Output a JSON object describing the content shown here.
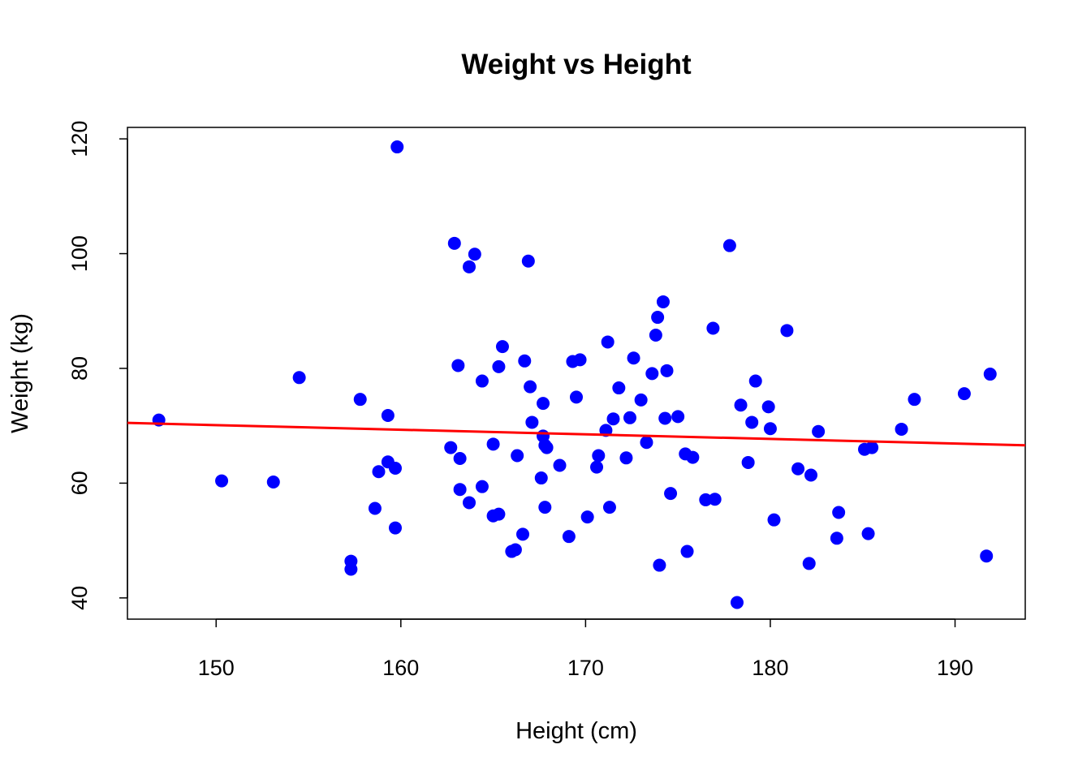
{
  "chart_data": {
    "type": "scatter",
    "title": "Weight vs Height",
    "xlabel": "Height (cm)",
    "ylabel": "Weight (kg)",
    "xlim": [
      145.2,
      193.8
    ],
    "ylim": [
      36.3,
      122.0
    ],
    "xticks": [
      150,
      160,
      170,
      180,
      190
    ],
    "yticks": [
      40,
      60,
      80,
      100,
      120
    ],
    "point_color": "#0000ff",
    "line_color": "#ff0000",
    "regression_line": {
      "x": [
        145.2,
        193.8
      ],
      "y": [
        70.5,
        66.6
      ]
    },
    "points": [
      {
        "x": 146.9,
        "y": 71.0
      },
      {
        "x": 150.3,
        "y": 60.4
      },
      {
        "x": 153.1,
        "y": 60.2
      },
      {
        "x": 154.5,
        "y": 78.4
      },
      {
        "x": 157.3,
        "y": 46.4
      },
      {
        "x": 157.3,
        "y": 45.0
      },
      {
        "x": 157.8,
        "y": 74.6
      },
      {
        "x": 158.6,
        "y": 55.6
      },
      {
        "x": 158.8,
        "y": 62.0
      },
      {
        "x": 159.3,
        "y": 71.8
      },
      {
        "x": 159.3,
        "y": 63.7
      },
      {
        "x": 159.7,
        "y": 62.6
      },
      {
        "x": 159.7,
        "y": 52.2
      },
      {
        "x": 159.8,
        "y": 118.6
      },
      {
        "x": 162.7,
        "y": 66.2
      },
      {
        "x": 162.9,
        "y": 101.8
      },
      {
        "x": 163.1,
        "y": 80.5
      },
      {
        "x": 163.2,
        "y": 64.3
      },
      {
        "x": 163.2,
        "y": 58.9
      },
      {
        "x": 163.7,
        "y": 97.7
      },
      {
        "x": 163.7,
        "y": 56.6
      },
      {
        "x": 164.0,
        "y": 99.9
      },
      {
        "x": 164.4,
        "y": 77.8
      },
      {
        "x": 164.4,
        "y": 59.4
      },
      {
        "x": 165.0,
        "y": 66.8
      },
      {
        "x": 165.0,
        "y": 54.3
      },
      {
        "x": 165.3,
        "y": 54.6
      },
      {
        "x": 165.3,
        "y": 80.3
      },
      {
        "x": 165.5,
        "y": 83.8
      },
      {
        "x": 166.0,
        "y": 48.1
      },
      {
        "x": 166.2,
        "y": 48.4
      },
      {
        "x": 166.3,
        "y": 64.8
      },
      {
        "x": 166.6,
        "y": 51.1
      },
      {
        "x": 166.7,
        "y": 81.3
      },
      {
        "x": 166.9,
        "y": 98.7
      },
      {
        "x": 167.0,
        "y": 76.8
      },
      {
        "x": 167.1,
        "y": 70.6
      },
      {
        "x": 167.6,
        "y": 60.9
      },
      {
        "x": 167.7,
        "y": 73.9
      },
      {
        "x": 167.7,
        "y": 68.2
      },
      {
        "x": 167.8,
        "y": 66.6
      },
      {
        "x": 167.8,
        "y": 55.8
      },
      {
        "x": 167.9,
        "y": 66.2
      },
      {
        "x": 168.6,
        "y": 63.1
      },
      {
        "x": 169.1,
        "y": 50.7
      },
      {
        "x": 169.3,
        "y": 81.2
      },
      {
        "x": 169.5,
        "y": 75.0
      },
      {
        "x": 169.7,
        "y": 81.5
      },
      {
        "x": 170.1,
        "y": 54.1
      },
      {
        "x": 170.6,
        "y": 62.8
      },
      {
        "x": 170.7,
        "y": 64.8
      },
      {
        "x": 171.1,
        "y": 69.2
      },
      {
        "x": 171.2,
        "y": 84.6
      },
      {
        "x": 171.3,
        "y": 55.8
      },
      {
        "x": 171.5,
        "y": 71.2
      },
      {
        "x": 171.8,
        "y": 76.6
      },
      {
        "x": 172.2,
        "y": 64.4
      },
      {
        "x": 172.4,
        "y": 71.4
      },
      {
        "x": 172.6,
        "y": 81.8
      },
      {
        "x": 173.0,
        "y": 74.5
      },
      {
        "x": 173.3,
        "y": 67.1
      },
      {
        "x": 173.6,
        "y": 79.1
      },
      {
        "x": 173.8,
        "y": 85.8
      },
      {
        "x": 173.9,
        "y": 88.9
      },
      {
        "x": 174.0,
        "y": 45.7
      },
      {
        "x": 174.2,
        "y": 91.6
      },
      {
        "x": 174.3,
        "y": 71.3
      },
      {
        "x": 174.4,
        "y": 79.6
      },
      {
        "x": 174.6,
        "y": 58.2
      },
      {
        "x": 175.0,
        "y": 71.6
      },
      {
        "x": 175.4,
        "y": 65.1
      },
      {
        "x": 175.5,
        "y": 48.1
      },
      {
        "x": 175.8,
        "y": 64.5
      },
      {
        "x": 176.5,
        "y": 57.1
      },
      {
        "x": 176.9,
        "y": 87.0
      },
      {
        "x": 177.0,
        "y": 57.2
      },
      {
        "x": 177.8,
        "y": 101.4
      },
      {
        "x": 178.2,
        "y": 39.2
      },
      {
        "x": 178.4,
        "y": 73.6
      },
      {
        "x": 178.8,
        "y": 63.6
      },
      {
        "x": 179.0,
        "y": 70.6
      },
      {
        "x": 179.2,
        "y": 77.8
      },
      {
        "x": 179.9,
        "y": 73.3
      },
      {
        "x": 180.0,
        "y": 69.5
      },
      {
        "x": 180.2,
        "y": 53.6
      },
      {
        "x": 180.9,
        "y": 86.6
      },
      {
        "x": 181.5,
        "y": 62.5
      },
      {
        "x": 182.1,
        "y": 46.0
      },
      {
        "x": 182.2,
        "y": 61.4
      },
      {
        "x": 182.6,
        "y": 69.0
      },
      {
        "x": 183.6,
        "y": 50.4
      },
      {
        "x": 183.7,
        "y": 54.9
      },
      {
        "x": 185.1,
        "y": 65.9
      },
      {
        "x": 185.3,
        "y": 51.2
      },
      {
        "x": 185.5,
        "y": 66.2
      },
      {
        "x": 187.1,
        "y": 69.4
      },
      {
        "x": 187.8,
        "y": 74.6
      },
      {
        "x": 190.5,
        "y": 75.6
      },
      {
        "x": 191.7,
        "y": 47.3
      },
      {
        "x": 191.9,
        "y": 79.0
      }
    ]
  }
}
